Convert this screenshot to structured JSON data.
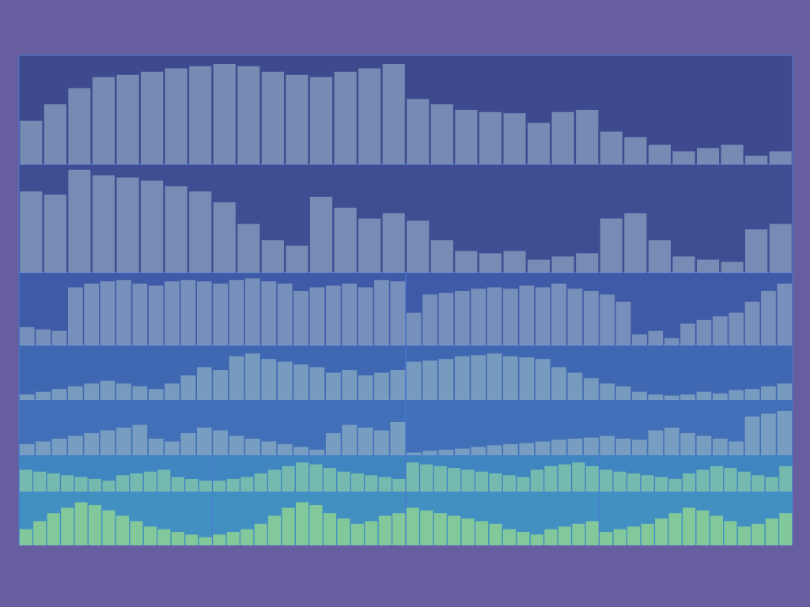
{
  "chart_data": [
    {
      "type": "bar",
      "values": [
        40,
        55,
        70,
        80,
        82,
        85,
        88,
        90,
        92,
        90,
        85,
        82,
        80,
        85,
        88,
        92,
        60,
        55,
        50,
        48,
        47,
        38,
        48,
        50,
        30,
        25,
        18,
        12,
        15,
        18,
        8,
        12
      ],
      "ylim": [
        0,
        100
      ],
      "tick_labels": false,
      "grid": false,
      "color": "#8fa6c4"
    },
    {
      "type": "bar",
      "values": [
        75,
        72,
        95,
        90,
        88,
        85,
        80,
        75,
        65,
        45,
        30,
        25,
        70,
        60,
        50,
        55,
        48,
        30,
        20,
        18,
        20,
        12,
        15,
        18,
        50,
        55,
        30,
        15,
        12,
        10,
        40,
        45
      ],
      "ylim": [
        0,
        100
      ],
      "tick_labels": false,
      "grid": false,
      "color": "#8fa6c4"
    },
    {
      "type": "bar",
      "values": [
        25,
        22,
        20,
        80,
        85,
        88,
        90,
        85,
        82,
        88,
        90,
        88,
        85,
        90,
        92,
        88,
        85,
        75,
        80,
        82,
        85,
        80,
        90,
        88
      ],
      "ylim": [
        0,
        100
      ],
      "tick_labels": false,
      "grid": false,
      "color": "#8fa6c4"
    },
    {
      "type": "bar",
      "values": [
        45,
        70,
        72,
        75,
        78,
        80,
        78,
        82,
        80,
        85,
        78,
        75,
        70,
        60,
        15,
        20,
        10,
        30,
        35,
        40,
        45,
        60,
        75,
        85
      ],
      "ylim": [
        0,
        100
      ],
      "tick_labels": false,
      "grid": false,
      "color": "#8fa6c4"
    },
    {
      "type": "bar",
      "values": [
        10,
        15,
        20,
        25,
        30,
        35,
        30,
        25,
        20,
        30,
        45,
        60,
        55,
        80,
        85,
        75,
        70,
        65,
        60,
        50,
        55,
        45,
        50,
        55
      ],
      "ylim": [
        0,
        100
      ],
      "tick_labels": false,
      "grid": false,
      "color": "#8fb0c4"
    },
    {
      "type": "bar",
      "values": [
        70,
        72,
        75,
        80,
        82,
        85,
        80,
        78,
        75,
        60,
        50,
        40,
        30,
        25,
        15,
        10,
        8,
        10,
        15,
        12,
        18,
        20,
        25,
        30
      ],
      "ylim": [
        0,
        100
      ],
      "tick_labels": false,
      "grid": false,
      "color": "#8fb0c4"
    },
    {
      "type": "bar",
      "values": [
        20,
        25,
        30,
        35,
        40,
        45,
        50,
        55,
        30,
        25,
        40,
        50,
        45,
        35,
        30,
        25,
        20,
        15,
        10,
        40,
        55,
        50,
        45,
        60
      ],
      "ylim": [
        0,
        100
      ],
      "tick_labels": false,
      "grid": false,
      "color": "#8fb0c4"
    },
    {
      "type": "bar",
      "values": [
        5,
        8,
        10,
        12,
        15,
        18,
        20,
        22,
        25,
        28,
        30,
        32,
        35,
        30,
        28,
        45,
        50,
        40,
        35,
        30,
        25,
        70,
        75,
        80
      ],
      "ylim": [
        0,
        100
      ],
      "tick_labels": false,
      "grid": false,
      "color": "#8fb0c4"
    },
    {
      "type": "bar",
      "values": [
        60,
        55,
        50,
        45,
        40,
        35,
        30,
        45,
        50,
        55,
        60,
        40,
        35,
        30
      ],
      "ylim": [
        0,
        100
      ],
      "tick_labels": false,
      "grid": false,
      "color": "#8fd0a8"
    },
    {
      "type": "bar",
      "values": [
        30,
        35,
        40,
        50,
        60,
        70,
        80,
        75,
        65,
        55,
        50,
        45,
        40,
        35
      ],
      "ylim": [
        0,
        100
      ],
      "tick_labels": false,
      "grid": false,
      "color": "#8fd0a8"
    },
    {
      "type": "bar",
      "values": [
        80,
        75,
        70,
        65,
        60,
        55,
        50,
        45,
        40,
        60,
        70,
        75,
        80,
        70
      ],
      "ylim": [
        0,
        100
      ],
      "tick_labels": false,
      "grid": false,
      "color": "#8fd0a8"
    },
    {
      "type": "bar",
      "values": [
        60,
        55,
        50,
        45,
        40,
        35,
        50,
        60,
        70,
        65,
        55,
        45,
        40,
        70
      ],
      "ylim": [
        0,
        100
      ],
      "tick_labels": false,
      "grid": false,
      "color": "#8fd0a8"
    },
    {
      "type": "bar",
      "values": [
        30,
        45,
        60,
        70,
        80,
        75,
        65,
        55,
        45,
        35,
        30,
        25,
        20,
        15
      ],
      "ylim": [
        0,
        100
      ],
      "tick_labels": false,
      "grid": false,
      "color": "#9fe08a"
    },
    {
      "type": "bar",
      "values": [
        20,
        25,
        30,
        40,
        55,
        70,
        80,
        75,
        60,
        50,
        40,
        45,
        55,
        60
      ],
      "ylim": [
        0,
        100
      ],
      "tick_labels": false,
      "grid": false,
      "color": "#9fe08a"
    },
    {
      "type": "bar",
      "values": [
        70,
        65,
        60,
        55,
        50,
        45,
        40,
        30,
        25,
        20,
        30,
        35,
        40,
        45
      ],
      "ylim": [
        0,
        100
      ],
      "tick_labels": false,
      "grid": false,
      "color": "#9fe08a"
    },
    {
      "type": "bar",
      "values": [
        25,
        30,
        35,
        40,
        50,
        60,
        70,
        65,
        55,
        45,
        35,
        40,
        50,
        60
      ],
      "ylim": [
        0,
        100
      ],
      "tick_labels": false,
      "grid": false,
      "color": "#9fe08a"
    }
  ]
}
